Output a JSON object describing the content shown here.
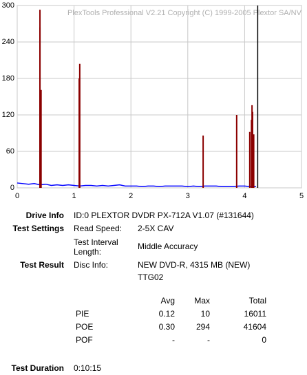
{
  "chart_data": {
    "type": "spike",
    "title": "PlexTools Professional V2.21 Copyright (C) 1999-2005 Plextor SA/NV",
    "xlim": [
      0,
      5
    ],
    "xticks": [
      0,
      1,
      2,
      3,
      4,
      5
    ],
    "ylim": [
      0,
      300
    ],
    "yticks": [
      0,
      60,
      120,
      180,
      240,
      300
    ],
    "grid": true,
    "series": [
      {
        "color": "#0000ff",
        "style": "line",
        "x": [
          0,
          0.1,
          0.2,
          0.3,
          0.4,
          0.5,
          0.6,
          0.7,
          0.8,
          0.9,
          1,
          1.1,
          1.2,
          1.3,
          1.4,
          1.5,
          1.6,
          1.7,
          1.8,
          1.9,
          2,
          2.1,
          2.2,
          2.3,
          2.4,
          2.5,
          2.6,
          2.7,
          2.8,
          2.9,
          3,
          3.1,
          3.2,
          3.3,
          3.4,
          3.5,
          3.6,
          3.7,
          3.8,
          3.9,
          4,
          4.1,
          4.2
        ],
        "values": [
          8,
          7,
          6,
          7,
          5,
          6,
          4,
          5,
          4,
          5,
          4,
          3,
          4,
          4,
          3,
          4,
          3,
          4,
          5,
          3,
          3,
          3,
          2,
          3,
          3,
          2,
          3,
          3,
          3,
          3,
          2,
          3,
          2,
          3,
          3,
          3,
          2,
          2,
          2,
          3,
          3,
          2,
          2
        ]
      },
      {
        "color": "#8b0000",
        "style": "spikes",
        "x": [
          0.4,
          0.4,
          0.42,
          1.09,
          1.1,
          3.27,
          3.86,
          4.09,
          4.12,
          4.13,
          4.14,
          4.16
        ],
        "values": [
          264,
          293,
          161,
          180,
          204,
          86,
          120,
          92,
          112,
          136,
          125,
          88
        ]
      }
    ],
    "vlines": [
      {
        "x": 4.23,
        "color": "#000000"
      }
    ]
  },
  "report": {
    "drive_info": {
      "label": "Drive Info",
      "value": "ID:0 PLEXTOR DVDR PX-712A V1.07 (#131644)"
    },
    "test_settings": {
      "label": "Test Settings",
      "read_speed_label": "Read Speed:",
      "read_speed": "2-5X CAV",
      "interval_label": "Test Interval Length:",
      "interval": "Middle Accuracy"
    },
    "test_result": {
      "label": "Test Result",
      "disc_info_label": "Disc Info:",
      "disc_info": "NEW DVD-R, 4315 MB (NEW)",
      "disc_id": "TTG02"
    },
    "table": {
      "header": [
        "Avg",
        "Max",
        "Total"
      ],
      "rows": [
        [
          "PIE",
          "0.12",
          "10",
          "16011"
        ],
        [
          "POE",
          "0.30",
          "294",
          "41604"
        ],
        [
          "POF",
          "-",
          "-",
          "0"
        ]
      ]
    },
    "test_duration": {
      "label": "Test Duration",
      "value": "0:10:15"
    }
  }
}
